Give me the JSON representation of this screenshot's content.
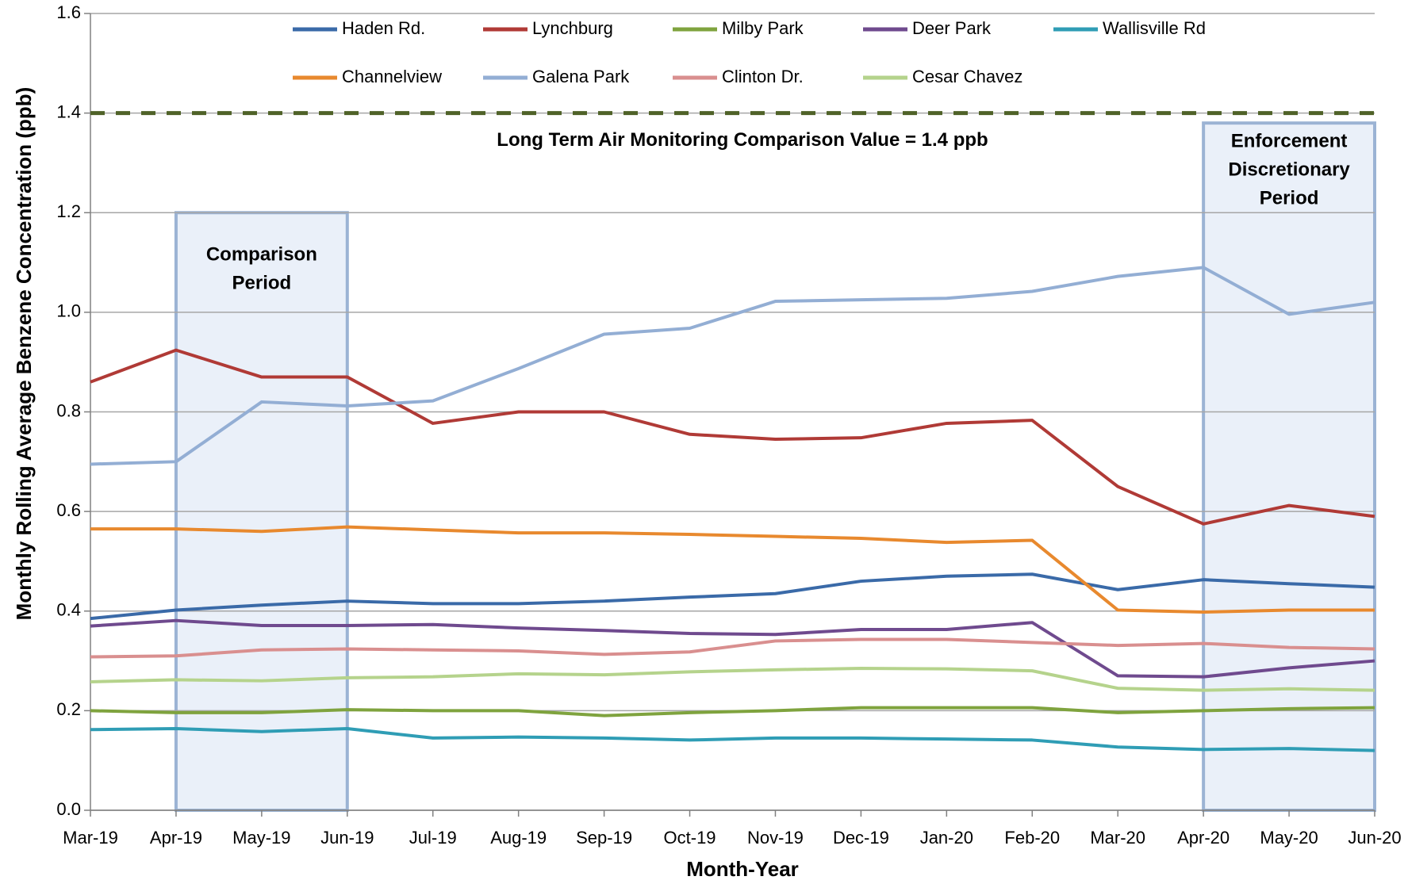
{
  "chart_data": {
    "type": "line",
    "x_label": "Month-Year",
    "y_label": "Monthly Rolling Average Benzene Concentration (ppb)",
    "categories": [
      "Mar-19",
      "Apr-19",
      "May-19",
      "Jun-19",
      "Jul-19",
      "Aug-19",
      "Sep-19",
      "Oct-19",
      "Nov-19",
      "Dec-19",
      "Jan-20",
      "Feb-20",
      "Mar-20",
      "Apr-20",
      "May-20",
      "Jun-20"
    ],
    "ylim": [
      0,
      1.6
    ],
    "yticks": [
      {
        "value": 0,
        "label": "0.0"
      },
      {
        "value": 0.2,
        "label": "0.2"
      },
      {
        "value": 0.4,
        "label": "0.4"
      },
      {
        "value": 0.6,
        "label": "0.6"
      },
      {
        "value": 0.8,
        "label": "0.8"
      },
      {
        "value": 1,
        "label": "1.0"
      },
      {
        "value": 1.2,
        "label": "1.2"
      },
      {
        "value": 1.4,
        "label": "1.4"
      },
      {
        "value": 1.6,
        "label": "1.6"
      }
    ],
    "grid": true,
    "reference_line": {
      "value": 1.4,
      "color": "#4f6228",
      "label": "Long Term Air Monitoring Comparison Value  = 1.4 ppb"
    },
    "shaded_regions": [
      {
        "start": "Apr-19",
        "end": "Jun-19",
        "top": 1.2,
        "label": [
          "Comparison",
          "Period"
        ]
      },
      {
        "start": "Apr-20",
        "end": "Jun-20",
        "top": 1.38,
        "label": [
          "Enforcement",
          "Discretionary",
          "Period"
        ]
      }
    ],
    "series": [
      {
        "name": "Haden Rd.",
        "color": "#3a6aa8",
        "values": [
          0.385,
          0.402,
          0.412,
          0.42,
          0.415,
          0.415,
          0.42,
          0.428,
          0.435,
          0.46,
          0.47,
          0.474,
          0.443,
          0.463,
          0.455,
          0.448
        ]
      },
      {
        "name": "Lynchburg",
        "color": "#b03a36",
        "values": [
          0.86,
          0.924,
          0.87,
          0.87,
          0.777,
          0.8,
          0.8,
          0.755,
          0.745,
          0.748,
          0.777,
          0.783,
          0.65,
          0.575,
          0.612,
          0.59
        ]
      },
      {
        "name": "Milby Park",
        "color": "#7fa33e",
        "values": [
          0.2,
          0.196,
          0.196,
          0.202,
          0.2,
          0.2,
          0.19,
          0.196,
          0.2,
          0.206,
          0.206,
          0.206,
          0.196,
          0.2,
          0.204,
          0.206
        ]
      },
      {
        "name": "Deer Park",
        "color": "#6f4a8e",
        "values": [
          0.37,
          0.381,
          0.371,
          0.371,
          0.373,
          0.366,
          0.361,
          0.355,
          0.353,
          0.363,
          0.363,
          0.377,
          0.27,
          0.268,
          0.286,
          0.3
        ]
      },
      {
        "name": "Wallisville Rd",
        "color": "#2f9db5",
        "values": [
          0.162,
          0.164,
          0.158,
          0.164,
          0.145,
          0.147,
          0.145,
          0.141,
          0.145,
          0.145,
          0.143,
          0.141,
          0.127,
          0.122,
          0.124,
          0.12
        ]
      },
      {
        "name": "Channelview",
        "color": "#e8892e",
        "values": [
          0.565,
          0.565,
          0.56,
          0.569,
          0.563,
          0.557,
          0.557,
          0.554,
          0.55,
          0.546,
          0.538,
          0.542,
          0.402,
          0.398,
          0.402,
          0.402
        ]
      },
      {
        "name": "Galena Park",
        "color": "#93aed4",
        "values": [
          0.695,
          0.7,
          0.82,
          0.812,
          0.822,
          0.887,
          0.956,
          0.968,
          1.022,
          1.025,
          1.028,
          1.042,
          1.072,
          1.09,
          0.996,
          1.02
        ]
      },
      {
        "name": "Clinton Dr.",
        "color": "#d98f8f",
        "values": [
          0.308,
          0.31,
          0.322,
          0.324,
          0.322,
          0.32,
          0.313,
          0.318,
          0.34,
          0.343,
          0.343,
          0.337,
          0.331,
          0.335,
          0.327,
          0.324
        ]
      },
      {
        "name": "Cesar Chavez",
        "color": "#b5d38c",
        "values": [
          0.258,
          0.262,
          0.26,
          0.266,
          0.268,
          0.274,
          0.272,
          0.278,
          0.282,
          0.285,
          0.284,
          0.28,
          0.245,
          0.241,
          0.244,
          0.241
        ]
      }
    ]
  }
}
